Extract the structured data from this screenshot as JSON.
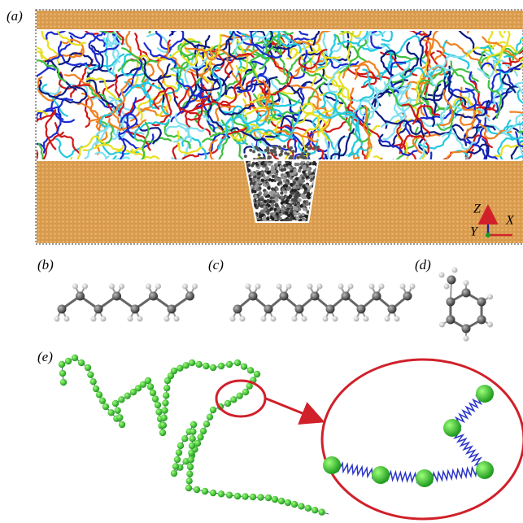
{
  "panels": {
    "a": "(a)",
    "b": "(b)",
    "c": "(c)",
    "d": "(d)",
    "e": "(e)"
  },
  "axes": {
    "z": "Z",
    "y": "Y",
    "x": "X"
  }
}
